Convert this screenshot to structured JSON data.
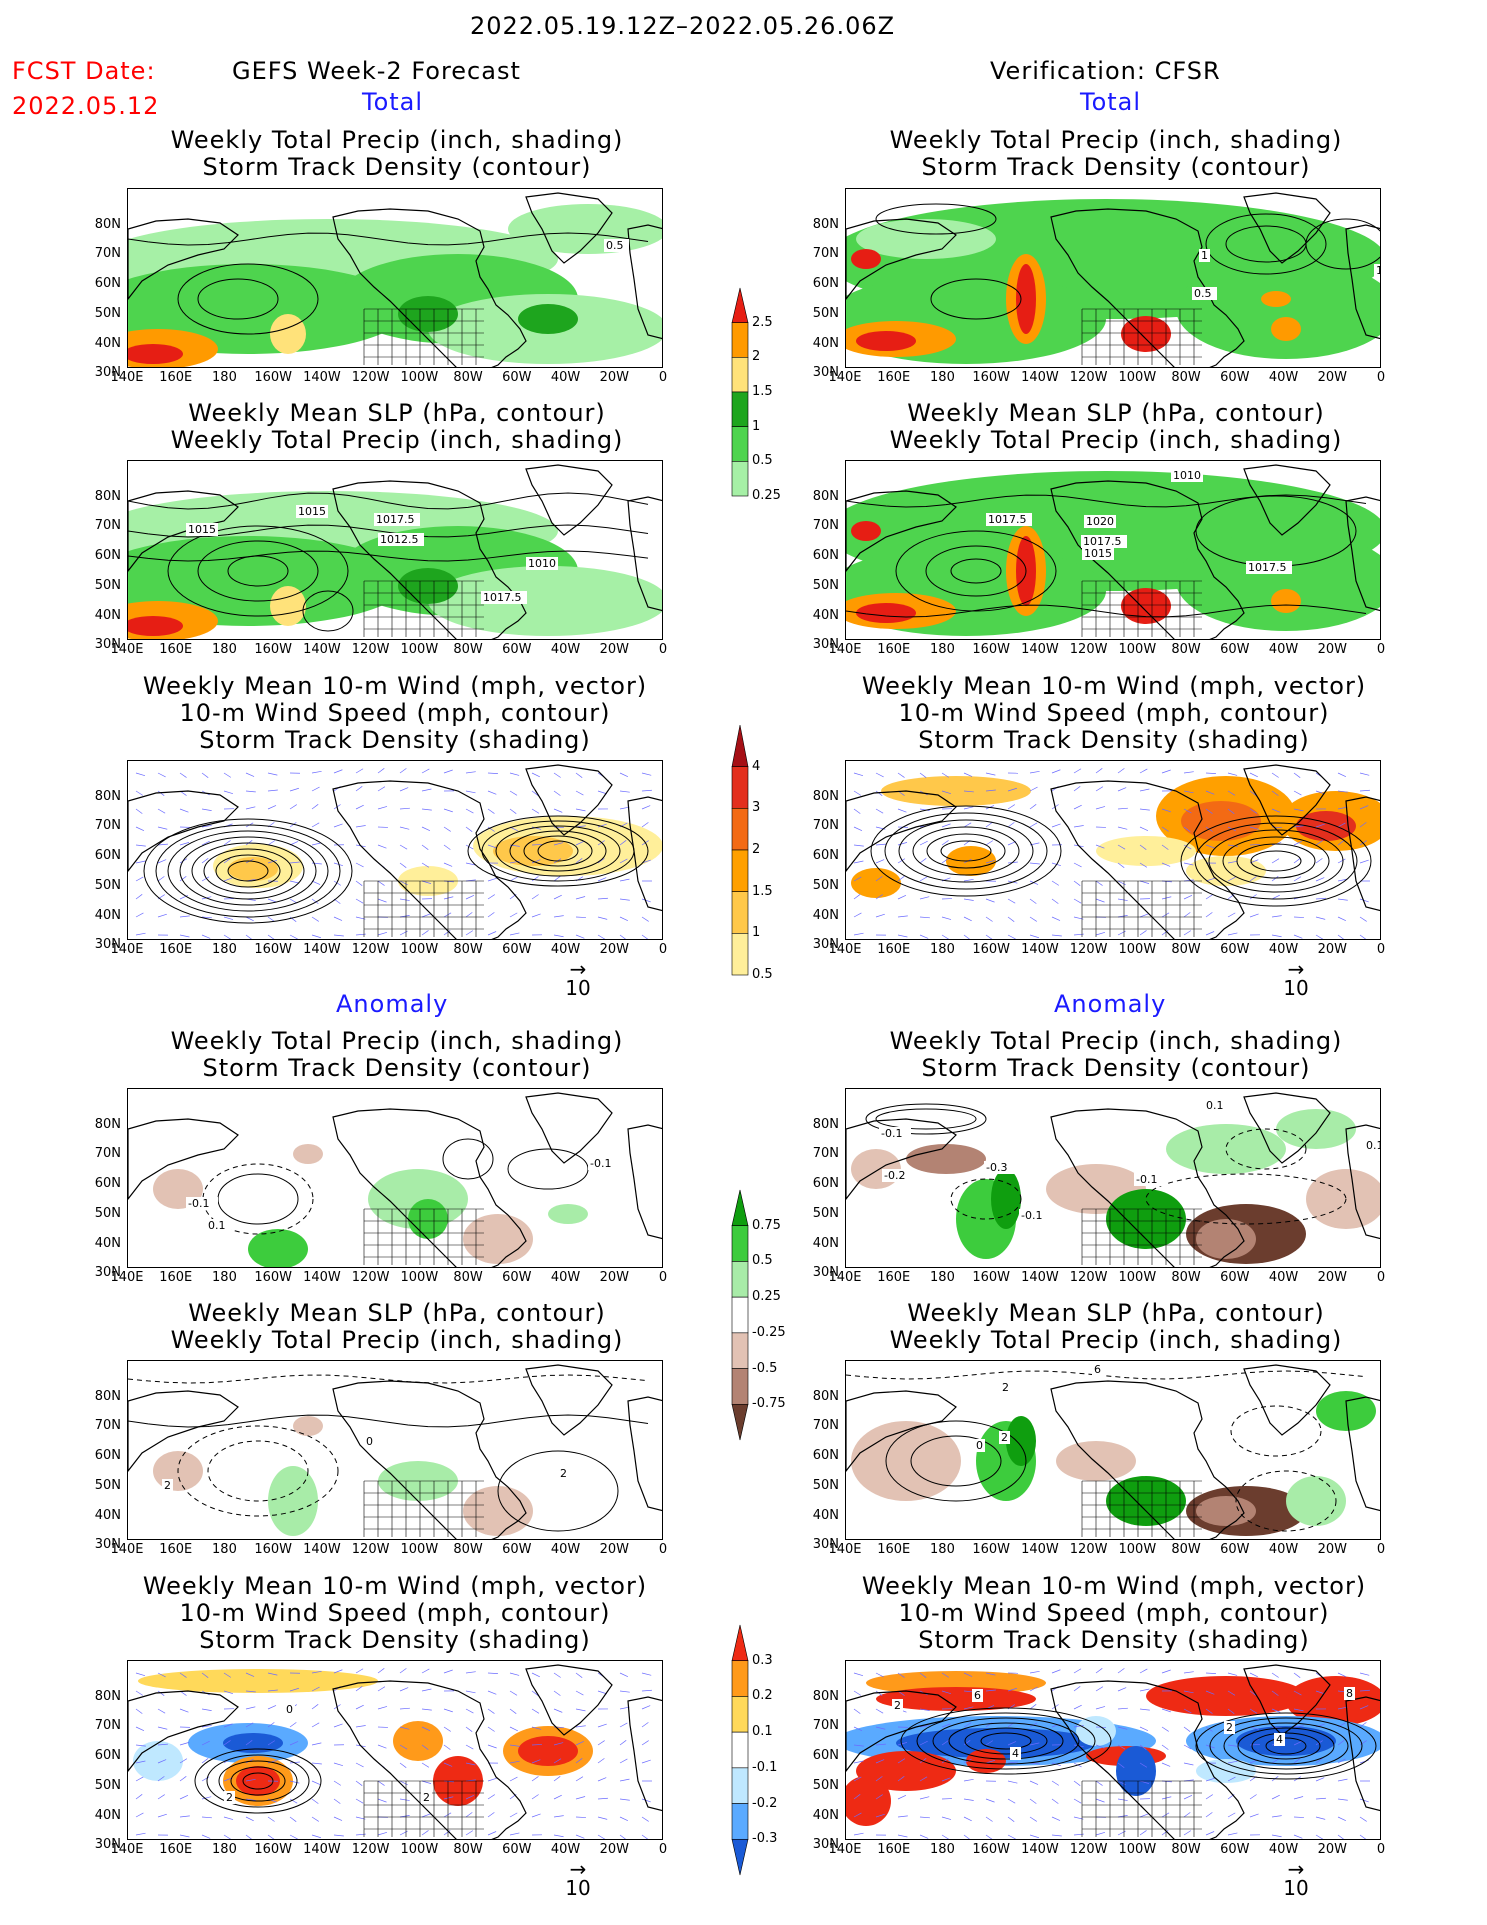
{
  "header": {
    "date_range": "2022.05.19.12Z–2022.05.26.06Z",
    "fcst_label": "FCST Date:",
    "fcst_date": "2022.05.12",
    "left_title": "GEFS Week-2 Forecast",
    "right_title": "Verification: CFSR"
  },
  "sections": {
    "total": "Total",
    "anomaly": "Anomaly"
  },
  "titles": {
    "precip_storm": [
      "Weekly Total Precip (inch, shading)",
      "Storm Track Density (contour)"
    ],
    "slp_precip": [
      "Weekly Mean SLP (hPa, contour)",
      "Weekly Total Precip (inch, shading)"
    ],
    "wind": [
      "Weekly Mean 10-m Wind (mph, vector)",
      "10-m Wind Speed (mph, contour)",
      "Storm Track Density (shading)"
    ]
  },
  "axes": {
    "lat_labels": [
      "80N",
      "70N",
      "60N",
      "50N",
      "40N",
      "30N"
    ],
    "lon_labels": [
      "140E",
      "160E",
      "180",
      "160W",
      "140W",
      "120W",
      "100W",
      "80W",
      "60W",
      "40W",
      "20W",
      "0"
    ]
  },
  "vector_reference": {
    "arrow": "→",
    "value": "10"
  },
  "colorbars": {
    "total_precip": {
      "labels": [
        "2.5",
        "2",
        "1.5",
        "1",
        "0.5",
        "0.25"
      ],
      "colors": [
        "#e61e14",
        "#ff9a00",
        "#ffe27a",
        "#1ea51e",
        "#4ed44e",
        "#a6f0a6"
      ]
    },
    "total_storm": {
      "labels": [
        "4",
        "3",
        "2",
        "1.5",
        "1",
        "0.5"
      ],
      "colors": [
        "#a50f15",
        "#e32f1d",
        "#f36a14",
        "#ffa000",
        "#ffc84a",
        "#ffef9a"
      ]
    },
    "anom_precip": {
      "labels": [
        "0.75",
        "0.5",
        "0.25",
        "-0.25",
        "-0.5",
        "-0.75"
      ],
      "colors": [
        "#0f9e0f",
        "#3dcc3d",
        "#a8eca8",
        "#ffffff",
        "#e2c2b4",
        "#b38373",
        "#6b3d2e"
      ]
    },
    "anom_storm": {
      "labels": [
        "0.3",
        "0.2",
        "0.1",
        "-0.1",
        "-0.2",
        "-0.3"
      ],
      "colors": [
        "#ee2a14",
        "#ff9a1a",
        "#ffd95a",
        "#ffffff",
        "#bfe8ff",
        "#5aaaff",
        "#1a5ad6"
      ]
    }
  },
  "contour_labels": {
    "fr1": [
      "0.5"
    ],
    "vr1": [
      "0.5",
      "1",
      "1"
    ],
    "fr2": [
      "1015",
      "1015",
      "1017.5",
      "1012.5",
      "1010",
      "1017.5"
    ],
    "vr2": [
      "1010",
      "1017.5",
      "1020",
      "1017.5",
      "1015",
      "1017.5"
    ],
    "fa1": [
      "-0.1",
      "0.1",
      "-0.1"
    ],
    "va1": [
      "-0.1",
      "-0.2",
      "-0.3",
      "-0.1",
      "-0.1",
      "0.1",
      "0.1"
    ],
    "fa2": [
      "2",
      "0",
      "2"
    ],
    "va2": [
      "6",
      "2",
      "2",
      "0"
    ],
    "fa3": [
      "2",
      "0",
      "2"
    ],
    "va3": [
      "2",
      "6",
      "4",
      "2",
      "4",
      "8"
    ]
  }
}
